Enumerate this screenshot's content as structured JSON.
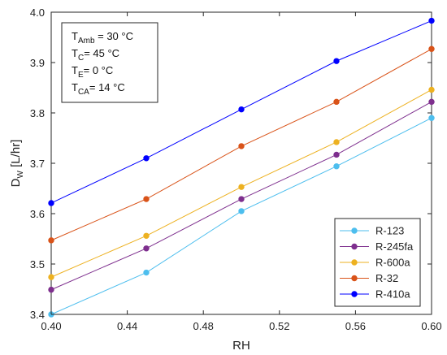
{
  "chart_data": {
    "type": "line",
    "title": "",
    "xlabel": "RH",
    "ylabel": "D",
    "ylabel_sub": "W",
    "ylabel_unit": " [L/hr]",
    "xlim": [
      0.4,
      0.6
    ],
    "ylim": [
      3.4,
      4.0
    ],
    "xticks": [
      "0.40",
      "0.44",
      "0.48",
      "0.52",
      "0.56",
      "0.60"
    ],
    "yticks": [
      "3.4",
      "3.5",
      "3.6",
      "3.7",
      "3.8",
      "3.9",
      "4.0"
    ],
    "grid": false,
    "legend_position": "bottom-right",
    "x": [
      0.4,
      0.45,
      0.5,
      0.55,
      0.6
    ],
    "series": [
      {
        "name": "R-123",
        "color": "#4DBEEE",
        "values": [
          3.4,
          3.483,
          3.605,
          3.694,
          3.79
        ]
      },
      {
        "name": "R-245fa",
        "color": "#7E2F8E",
        "values": [
          3.449,
          3.531,
          3.629,
          3.717,
          3.822
        ]
      },
      {
        "name": "R-600a",
        "color": "#EDB120",
        "values": [
          3.474,
          3.556,
          3.653,
          3.742,
          3.846
        ]
      },
      {
        "name": "R-32",
        "color": "#D95319",
        "values": [
          3.547,
          3.629,
          3.734,
          3.822,
          3.927
        ]
      },
      {
        "name": "R-410a",
        "color": "#0000FF",
        "values": [
          3.621,
          3.71,
          3.807,
          3.903,
          3.983
        ]
      }
    ],
    "annotation": [
      {
        "main": "T",
        "sub": "Amb",
        "rest": " = 30 °C"
      },
      {
        "main": "T",
        "sub": "C",
        "rest": "= 45 °C"
      },
      {
        "main": "T",
        "sub": "E",
        "rest": "= 0 °C"
      },
      {
        "main": "T",
        "sub": "CA",
        "rest": "= 14 °C"
      }
    ]
  }
}
